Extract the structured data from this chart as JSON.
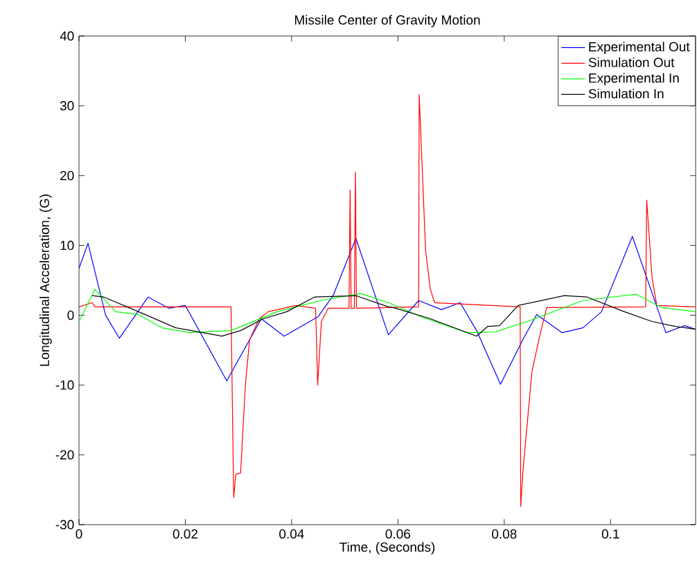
{
  "chart_data": {
    "type": "line",
    "title": "Missile Center of Gravity Motion",
    "xlabel": "Time, (Seconds)",
    "ylabel": "Longitudinal Acceleration, (G)",
    "xlim": [
      0,
      0.116
    ],
    "ylim": [
      -30,
      40
    ],
    "xticks": [
      0,
      0.02,
      0.04,
      0.06,
      0.08,
      0.1
    ],
    "yticks": [
      -30,
      -20,
      -10,
      0,
      10,
      20,
      30,
      40
    ],
    "grid": false,
    "legend": "top right",
    "marker": "none",
    "line_style": "solid",
    "series": [
      {
        "name": "Experimental Out",
        "color": "#0000ff",
        "x": [
          0,
          0.0017,
          0.005,
          0.0076,
          0.013,
          0.0169,
          0.02,
          0.0278,
          0.0343,
          0.0386,
          0.045,
          0.0478,
          0.0521,
          0.0582,
          0.0639,
          0.0682,
          0.0717,
          0.0748,
          0.0793,
          0.0835,
          0.0861,
          0.0909,
          0.0948,
          0.0983,
          0.1041,
          0.1104,
          0.1139,
          0.116
        ],
        "values": [
          6.7,
          10.3,
          0,
          -3.3,
          2.6,
          1.0,
          1.4,
          -9.4,
          -0.5,
          -3.0,
          -0.2,
          2.8,
          11.0,
          -2.8,
          2.1,
          0.8,
          1.8,
          -2.2,
          -9.9,
          -3.5,
          0.1,
          -2.5,
          -1.8,
          0.5,
          11.3,
          -2.5,
          -1.5,
          -2.0
        ]
      },
      {
        "name": "Simulation Out",
        "color": "#ff0000",
        "x": [
          0,
          0.0025,
          0.003,
          0.0286,
          0.0291,
          0.0295,
          0.0304,
          0.0313,
          0.0321,
          0.0339,
          0.0356,
          0.0408,
          0.0445,
          0.0447,
          0.0449,
          0.0456,
          0.0469,
          0.0508,
          0.051,
          0.0512,
          0.0518,
          0.052,
          0.0522,
          0.0639,
          0.064,
          0.0652,
          0.0661,
          0.0669,
          0.083,
          0.0831,
          0.0835,
          0.0852,
          0.0869,
          0.088,
          0.1066,
          0.1068,
          0.1078,
          0.1087,
          0.116
        ],
        "values": [
          1.2,
          1.8,
          1.2,
          1.2,
          -26.1,
          -22.8,
          -22.6,
          -10.0,
          -3.5,
          -0.5,
          0.5,
          1.4,
          1.0,
          -4.1,
          -10.0,
          -0.9,
          1.0,
          1.0,
          17.9,
          1.0,
          1.0,
          20.5,
          1.0,
          1.2,
          31.6,
          9.3,
          3.7,
          1.8,
          1.2,
          -27.4,
          -22.5,
          -8.1,
          -2.2,
          1.1,
          1.2,
          16.5,
          5.4,
          1.4,
          1.2
        ]
      },
      {
        "name": "Experimental In",
        "color": "#00ff00",
        "x": [
          0,
          0.003,
          0.0069,
          0.0112,
          0.0156,
          0.0208,
          0.0286,
          0.0373,
          0.046,
          0.053,
          0.0582,
          0.0643,
          0.073,
          0.0783,
          0.0843,
          0.0948,
          0.1048,
          0.1096,
          0.116
        ],
        "values": [
          -0.9,
          3.7,
          0.5,
          0.1,
          -1.8,
          -2.5,
          -2.2,
          0.5,
          2.2,
          3.1,
          1.8,
          -0.2,
          -2.5,
          -2.4,
          -0.9,
          2.1,
          3.0,
          1.1,
          0.5
        ]
      },
      {
        "name": "Simulation In",
        "color": "#000000",
        "x": [
          0.0025,
          0.0047,
          0.0112,
          0.0182,
          0.0269,
          0.0304,
          0.0347,
          0.0391,
          0.0443,
          0.0521,
          0.0582,
          0.0591,
          0.0661,
          0.0748,
          0.0769,
          0.0791,
          0.0826,
          0.0913,
          0.0956,
          0.1026,
          0.1078,
          0.1122,
          0.116
        ],
        "values": [
          2.8,
          2.6,
          0.5,
          -1.8,
          -3.0,
          -2.2,
          -0.5,
          0.5,
          2.6,
          2.8,
          1.2,
          1.1,
          -0.5,
          -3.0,
          -1.6,
          -1.5,
          1.4,
          2.8,
          2.6,
          0.5,
          -0.9,
          -1.6,
          -2.0
        ]
      }
    ]
  }
}
